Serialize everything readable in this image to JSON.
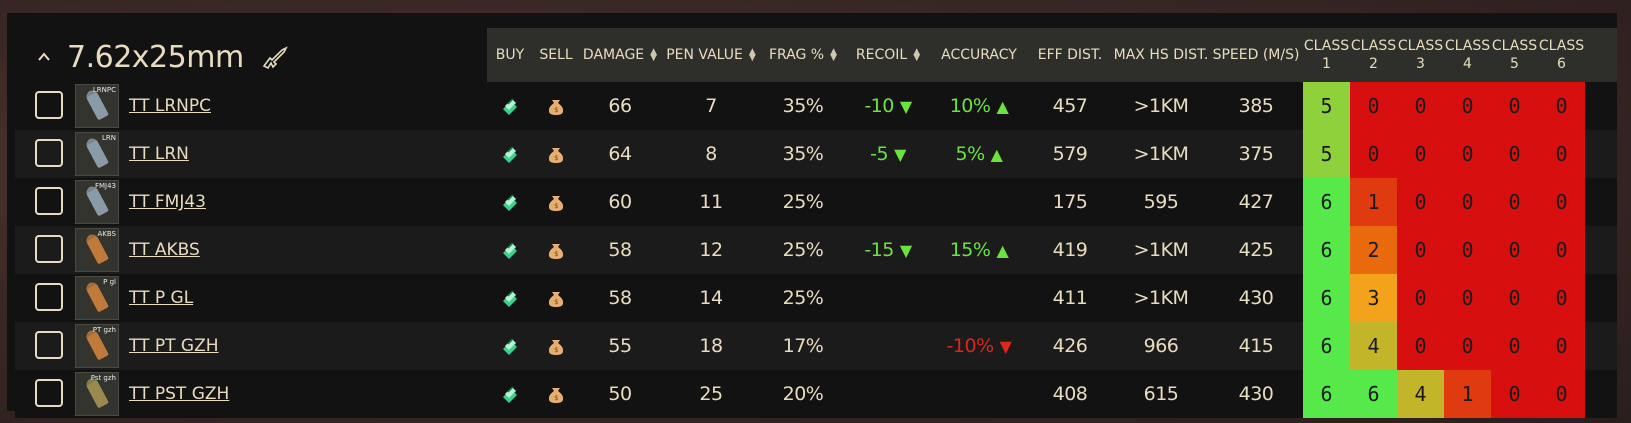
{
  "caliber": {
    "title": "7.62x25mm",
    "collapse_icon": "chevron-up-icon",
    "weapon_icon": "rifle-icon"
  },
  "headers": {
    "buy": "BUY",
    "sell": "SELL",
    "damage": "DAMAGE",
    "pen_value": "PEN VALUE",
    "frag": "FRAG %",
    "recoil": "RECOIL",
    "accuracy": "ACCURACY",
    "eff_dist": "EFF DIST.",
    "max_hs_dist": "MAX HS DIST.",
    "speed": "SPEED (M/S)",
    "classes": [
      {
        "label": "CLASS",
        "num": "1"
      },
      {
        "label": "CLASS",
        "num": "2"
      },
      {
        "label": "CLASS",
        "num": "3"
      },
      {
        "label": "CLASS",
        "num": "4"
      },
      {
        "label": "CLASS",
        "num": "5"
      },
      {
        "label": "CLASS",
        "num": "6"
      }
    ]
  },
  "colors": {
    "bright_green": "#57e84a",
    "green": "#8fd13a",
    "olive": "#c2b52a",
    "yellow": "#f3a21b",
    "orange": "#e86a0d",
    "red_orange": "#e03a10",
    "red": "#d70f0f"
  },
  "rows": [
    {
      "name": "TT LRNPC",
      "tag": "LRNPC",
      "tint": "#8a9aa6",
      "damage": "66",
      "pen": "7",
      "frag": "35%",
      "recoil": "-10",
      "recoil_dir": "▼",
      "accuracy": "10%",
      "accuracy_dir": "▲",
      "accuracy_good": true,
      "eff": "457",
      "maxhs": ">1KM",
      "speed": "385",
      "classes": [
        {
          "v": "5",
          "c": "green"
        },
        {
          "v": "0",
          "c": "red"
        },
        {
          "v": "0",
          "c": "red"
        },
        {
          "v": "0",
          "c": "red"
        },
        {
          "v": "0",
          "c": "red"
        },
        {
          "v": "0",
          "c": "red"
        }
      ]
    },
    {
      "name": "TT LRN",
      "tag": "LRN",
      "tint": "#8a9aa6",
      "damage": "64",
      "pen": "8",
      "frag": "35%",
      "recoil": "-5",
      "recoil_dir": "▼",
      "accuracy": "5%",
      "accuracy_dir": "▲",
      "accuracy_good": true,
      "eff": "579",
      "maxhs": ">1KM",
      "speed": "375",
      "classes": [
        {
          "v": "5",
          "c": "green"
        },
        {
          "v": "0",
          "c": "red"
        },
        {
          "v": "0",
          "c": "red"
        },
        {
          "v": "0",
          "c": "red"
        },
        {
          "v": "0",
          "c": "red"
        },
        {
          "v": "0",
          "c": "red"
        }
      ]
    },
    {
      "name": "TT FMJ43",
      "tag": "FMJ43",
      "tint": "#8a9aa6",
      "damage": "60",
      "pen": "11",
      "frag": "25%",
      "recoil": "",
      "recoil_dir": "",
      "accuracy": "",
      "accuracy_dir": "",
      "accuracy_good": true,
      "eff": "175",
      "maxhs": "595",
      "speed": "427",
      "classes": [
        {
          "v": "6",
          "c": "bright_green"
        },
        {
          "v": "1",
          "c": "red_orange"
        },
        {
          "v": "0",
          "c": "red"
        },
        {
          "v": "0",
          "c": "red"
        },
        {
          "v": "0",
          "c": "red"
        },
        {
          "v": "0",
          "c": "red"
        }
      ]
    },
    {
      "name": "TT AKBS",
      "tag": "AKBS",
      "tint": "#c07a3a",
      "damage": "58",
      "pen": "12",
      "frag": "25%",
      "recoil": "-15",
      "recoil_dir": "▼",
      "accuracy": "15%",
      "accuracy_dir": "▲",
      "accuracy_good": true,
      "eff": "419",
      "maxhs": ">1KM",
      "speed": "425",
      "classes": [
        {
          "v": "6",
          "c": "bright_green"
        },
        {
          "v": "2",
          "c": "orange"
        },
        {
          "v": "0",
          "c": "red"
        },
        {
          "v": "0",
          "c": "red"
        },
        {
          "v": "0",
          "c": "red"
        },
        {
          "v": "0",
          "c": "red"
        }
      ]
    },
    {
      "name": "TT P GL",
      "tag": "P gl",
      "tint": "#c07a3a",
      "damage": "58",
      "pen": "14",
      "frag": "25%",
      "recoil": "",
      "recoil_dir": "",
      "accuracy": "",
      "accuracy_dir": "",
      "accuracy_good": true,
      "eff": "411",
      "maxhs": ">1KM",
      "speed": "430",
      "classes": [
        {
          "v": "6",
          "c": "bright_green"
        },
        {
          "v": "3",
          "c": "yellow"
        },
        {
          "v": "0",
          "c": "red"
        },
        {
          "v": "0",
          "c": "red"
        },
        {
          "v": "0",
          "c": "red"
        },
        {
          "v": "0",
          "c": "red"
        }
      ]
    },
    {
      "name": "TT PT GZH",
      "tag": "PT gzh",
      "tint": "#c07a3a",
      "damage": "55",
      "pen": "18",
      "frag": "17%",
      "recoil": "",
      "recoil_dir": "",
      "accuracy": "-10%",
      "accuracy_dir": "▼",
      "accuracy_good": false,
      "eff": "426",
      "maxhs": "966",
      "speed": "415",
      "classes": [
        {
          "v": "6",
          "c": "bright_green"
        },
        {
          "v": "4",
          "c": "olive"
        },
        {
          "v": "0",
          "c": "red"
        },
        {
          "v": "0",
          "c": "red"
        },
        {
          "v": "0",
          "c": "red"
        },
        {
          "v": "0",
          "c": "red"
        }
      ]
    },
    {
      "name": "TT PST GZH",
      "tag": "Pst gzh",
      "tint": "#9a8a50",
      "damage": "50",
      "pen": "25",
      "frag": "20%",
      "recoil": "",
      "recoil_dir": "",
      "accuracy": "",
      "accuracy_dir": "",
      "accuracy_good": true,
      "eff": "408",
      "maxhs": "615",
      "speed": "430",
      "classes": [
        {
          "v": "6",
          "c": "bright_green"
        },
        {
          "v": "6",
          "c": "bright_green"
        },
        {
          "v": "4",
          "c": "olive"
        },
        {
          "v": "1",
          "c": "red_orange"
        },
        {
          "v": "0",
          "c": "red"
        },
        {
          "v": "0",
          "c": "red"
        }
      ]
    }
  ]
}
